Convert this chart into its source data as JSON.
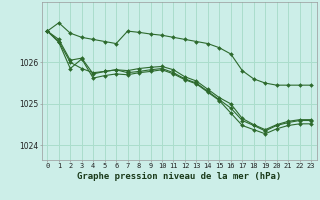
{
  "title": "Graphe pression niveau de la mer (hPa)",
  "background_color": "#cceee8",
  "grid_color": "#aaddcc",
  "line_color": "#2d6a2d",
  "hours": [
    0,
    1,
    2,
    3,
    4,
    5,
    6,
    7,
    8,
    9,
    10,
    11,
    12,
    13,
    14,
    15,
    16,
    17,
    18,
    19,
    20,
    21,
    22,
    23
  ],
  "series1": [
    1026.75,
    1026.95,
    1026.7,
    1026.6,
    1026.55,
    1026.5,
    1026.45,
    1026.75,
    1026.72,
    1026.68,
    1026.65,
    1026.6,
    1026.55,
    1026.5,
    1026.45,
    1026.35,
    1026.2,
    1025.8,
    1025.6,
    1025.5,
    1025.45,
    1025.45,
    1025.45,
    1025.45
  ],
  "series2": [
    1026.75,
    1026.55,
    1026.05,
    1026.1,
    1025.72,
    1025.78,
    1025.82,
    1025.75,
    1025.78,
    1025.82,
    1025.85,
    1025.75,
    1025.6,
    1025.5,
    1025.3,
    1025.1,
    1024.9,
    1024.6,
    1024.48,
    1024.35,
    1024.48,
    1024.55,
    1024.6,
    1024.6
  ],
  "series3": [
    1026.75,
    1026.5,
    1026.0,
    1025.85,
    1025.75,
    1025.78,
    1025.82,
    1025.8,
    1025.85,
    1025.88,
    1025.9,
    1025.82,
    1025.65,
    1025.55,
    1025.35,
    1025.15,
    1025.0,
    1024.65,
    1024.5,
    1024.38,
    1024.5,
    1024.58,
    1024.62,
    1024.62
  ],
  "series4": [
    1026.75,
    1026.48,
    1025.85,
    1026.08,
    1025.62,
    1025.68,
    1025.72,
    1025.7,
    1025.75,
    1025.78,
    1025.82,
    1025.72,
    1025.58,
    1025.48,
    1025.28,
    1025.08,
    1024.78,
    1024.48,
    1024.38,
    1024.28,
    1024.4,
    1024.48,
    1024.52,
    1024.52
  ],
  "ylim": [
    1023.65,
    1027.45
  ],
  "yticks": [
    1024.0,
    1025.0,
    1026.0
  ],
  "title_fontsize": 6.5,
  "tick_fontsize": 5.0
}
